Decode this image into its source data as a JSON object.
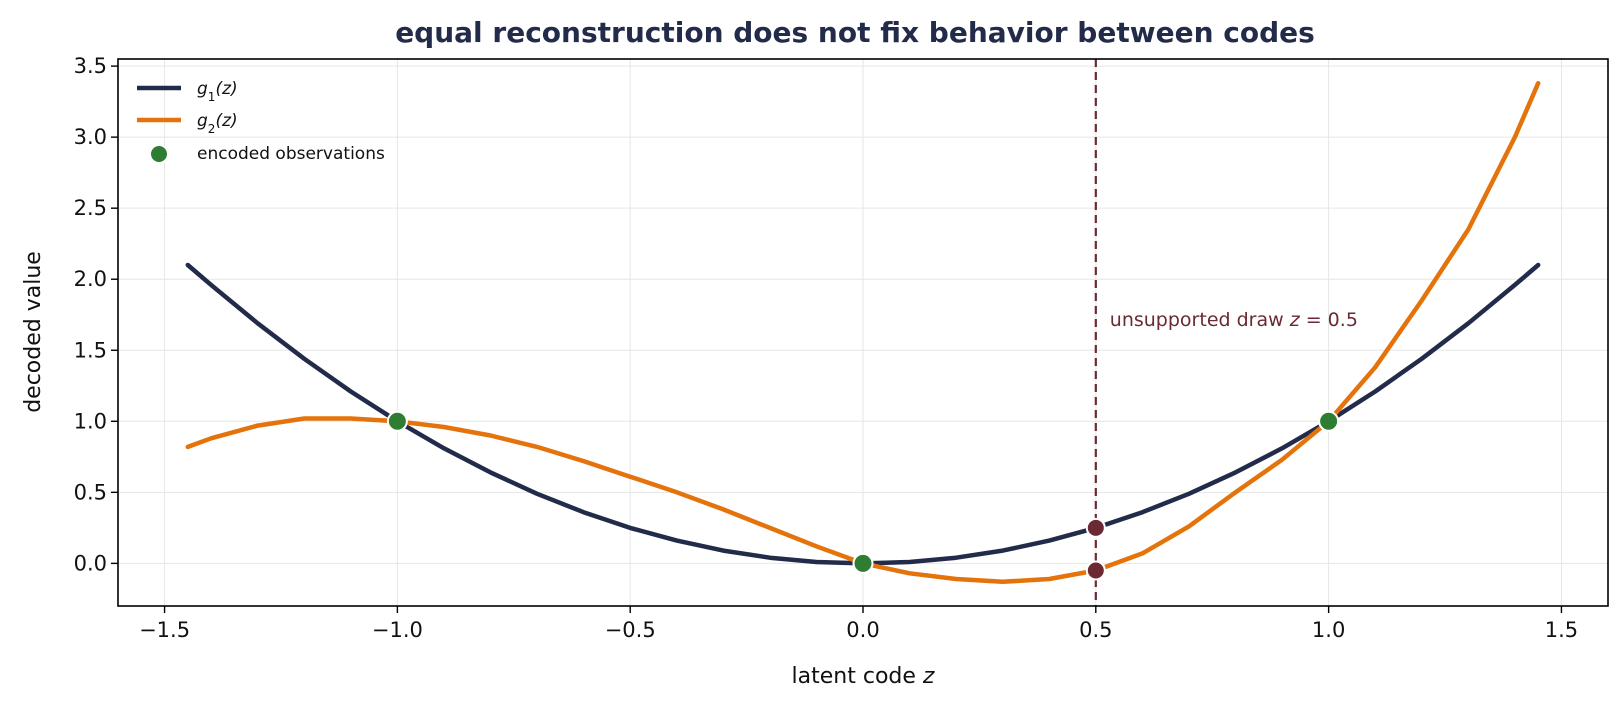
{
  "chart_data": {
    "type": "line",
    "title": "equal reconstruction does not fix behavior between codes",
    "xlabel": "latent code",
    "xlabel_var": "z",
    "ylabel": "decoded value",
    "xlim": [
      -1.6,
      1.6
    ],
    "ylim": [
      -0.3,
      3.55
    ],
    "xticks": [
      -1.5,
      -1.0,
      -0.5,
      0.0,
      0.5,
      1.0,
      1.5
    ],
    "xtick_labels": [
      "−1.5",
      "−1.0",
      "−0.5",
      "0.0",
      "0.5",
      "1.0",
      "1.5"
    ],
    "yticks": [
      0.0,
      0.5,
      1.0,
      1.5,
      2.0,
      2.5,
      3.0,
      3.5
    ],
    "ytick_labels": [
      "0.0",
      "0.5",
      "1.0",
      "1.5",
      "2.0",
      "2.5",
      "3.0",
      "3.5"
    ],
    "grid": true,
    "legend_position": "top-left",
    "series": [
      {
        "name_main": "g",
        "name_sub": "1",
        "name_arg": "(z)",
        "color": "#232b4a",
        "x": [
          -1.45,
          -1.4,
          -1.3,
          -1.2,
          -1.1,
          -1.0,
          -0.9,
          -0.8,
          -0.7,
          -0.6,
          -0.5,
          -0.4,
          -0.3,
          -0.2,
          -0.1,
          0.0,
          0.1,
          0.2,
          0.3,
          0.4,
          0.5,
          0.6,
          0.7,
          0.8,
          0.9,
          1.0,
          1.1,
          1.2,
          1.3,
          1.4,
          1.45
        ],
        "y": [
          2.1,
          1.96,
          1.69,
          1.44,
          1.21,
          1.0,
          0.81,
          0.64,
          0.49,
          0.36,
          0.25,
          0.16,
          0.09,
          0.04,
          0.01,
          0.0,
          0.01,
          0.04,
          0.09,
          0.16,
          0.25,
          0.36,
          0.49,
          0.64,
          0.81,
          1.0,
          1.21,
          1.44,
          1.69,
          1.96,
          2.1
        ]
      },
      {
        "name_main": "g",
        "name_sub": "2",
        "name_arg": "(z)",
        "color": "#e5730b",
        "x": [
          -1.45,
          -1.4,
          -1.3,
          -1.2,
          -1.1,
          -1.0,
          -0.9,
          -0.8,
          -0.7,
          -0.6,
          -0.5,
          -0.4,
          -0.3,
          -0.2,
          -0.1,
          0.0,
          0.1,
          0.2,
          0.3,
          0.4,
          0.5,
          0.6,
          0.7,
          0.8,
          0.9,
          1.0,
          1.1,
          1.2,
          1.3,
          1.4,
          1.45
        ],
        "y": [
          0.82,
          0.88,
          0.97,
          1.02,
          1.02,
          1.0,
          0.96,
          0.9,
          0.82,
          0.72,
          0.61,
          0.5,
          0.38,
          0.25,
          0.12,
          0.0,
          -0.07,
          -0.11,
          -0.13,
          -0.11,
          -0.05,
          0.07,
          0.26,
          0.5,
          0.73,
          1.0,
          1.38,
          1.85,
          2.35,
          3.0,
          3.38
        ]
      }
    ],
    "observations": {
      "label": "encoded observations",
      "color": "#2e7d32",
      "x": [
        -1.0,
        0.0,
        1.0
      ],
      "y": [
        1.0,
        0.0,
        1.0
      ]
    },
    "unsupported_draw": {
      "x": 0.5,
      "color": "#6b2a33",
      "points_y": [
        0.25,
        -0.05
      ],
      "label_prefix": "unsupported draw ",
      "label_var": "z",
      "label_eq": " = 0.5",
      "label_at": [
        0.53,
        1.72
      ]
    }
  }
}
